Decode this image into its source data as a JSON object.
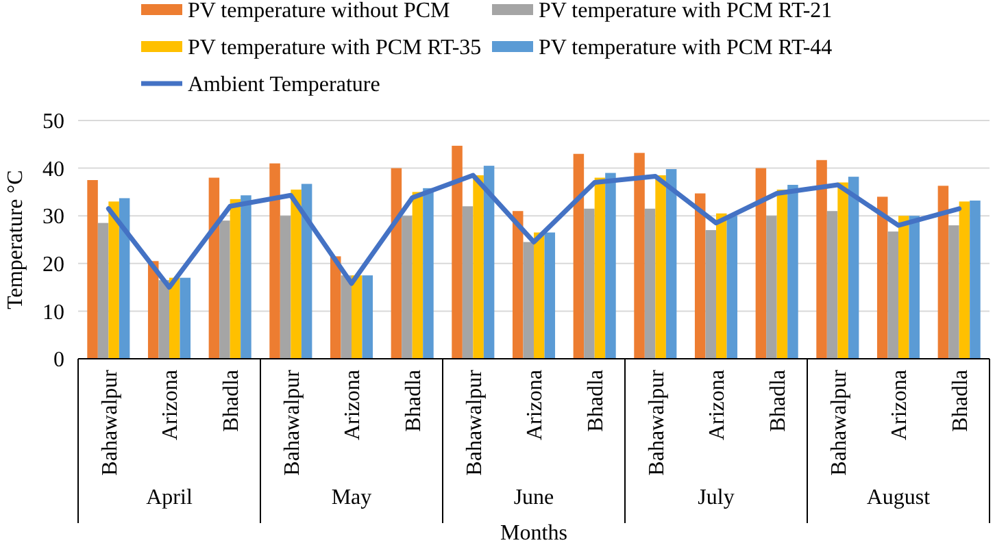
{
  "chart_data": {
    "type": "bar",
    "xlabel": "Months",
    "ylabel": "Temperature °C",
    "categories": [
      "Bahawalpur",
      "Arizona",
      "Bhadla",
      "Bahawalpur",
      "Arizona",
      "Bhadla",
      "Bahawalpur",
      "Arizona",
      "Bhadla",
      "Bahawalpur",
      "Arizona",
      "Bhadla",
      "Bahawalpur",
      "Arizona",
      "Bhadla"
    ],
    "annotations": [
      "April",
      "May",
      "June",
      "July",
      "August"
    ],
    "series": [
      {
        "name": "PV temperature without PCM",
        "color": "#ed7d31",
        "values": [
          37.5,
          20.5,
          38,
          41,
          21.5,
          40,
          44.7,
          31,
          43,
          43.2,
          34.7,
          40,
          41.7,
          34,
          36.3
        ]
      },
      {
        "name": "PV temperature with PCM RT-21",
        "color": "#a5a5a5",
        "values": [
          28.5,
          16.5,
          29,
          30,
          17.5,
          30,
          32,
          24.5,
          31.5,
          31.5,
          27,
          30,
          31,
          26.7,
          28
        ]
      },
      {
        "name": "PV temperature with PCM RT-35",
        "color": "#ffc000",
        "values": [
          33,
          17,
          33.5,
          35.5,
          17.5,
          35,
          38.5,
          26.5,
          38,
          38.5,
          30.5,
          35.5,
          37,
          30,
          33
        ]
      },
      {
        "name": "PV temperature with PCM RT-44",
        "color": "#5b9bd5",
        "values": [
          33.7,
          17,
          34.3,
          36.7,
          17.5,
          35.8,
          40.5,
          26.5,
          39,
          39.8,
          30,
          36.5,
          38.2,
          30,
          33.2
        ]
      },
      {
        "name": "Ambient Temperature",
        "type": "line",
        "color": "#4472c4",
        "values": [
          31.5,
          15,
          32,
          34.3,
          15.8,
          33.8,
          38.5,
          24.5,
          37,
          38.3,
          28.5,
          34.7,
          36.5,
          28,
          31.5
        ]
      }
    ],
    "ylim": [
      0,
      50
    ],
    "yticks": [
      0,
      10,
      20,
      30,
      40,
      50
    ],
    "grid": "y",
    "legend": "top"
  }
}
